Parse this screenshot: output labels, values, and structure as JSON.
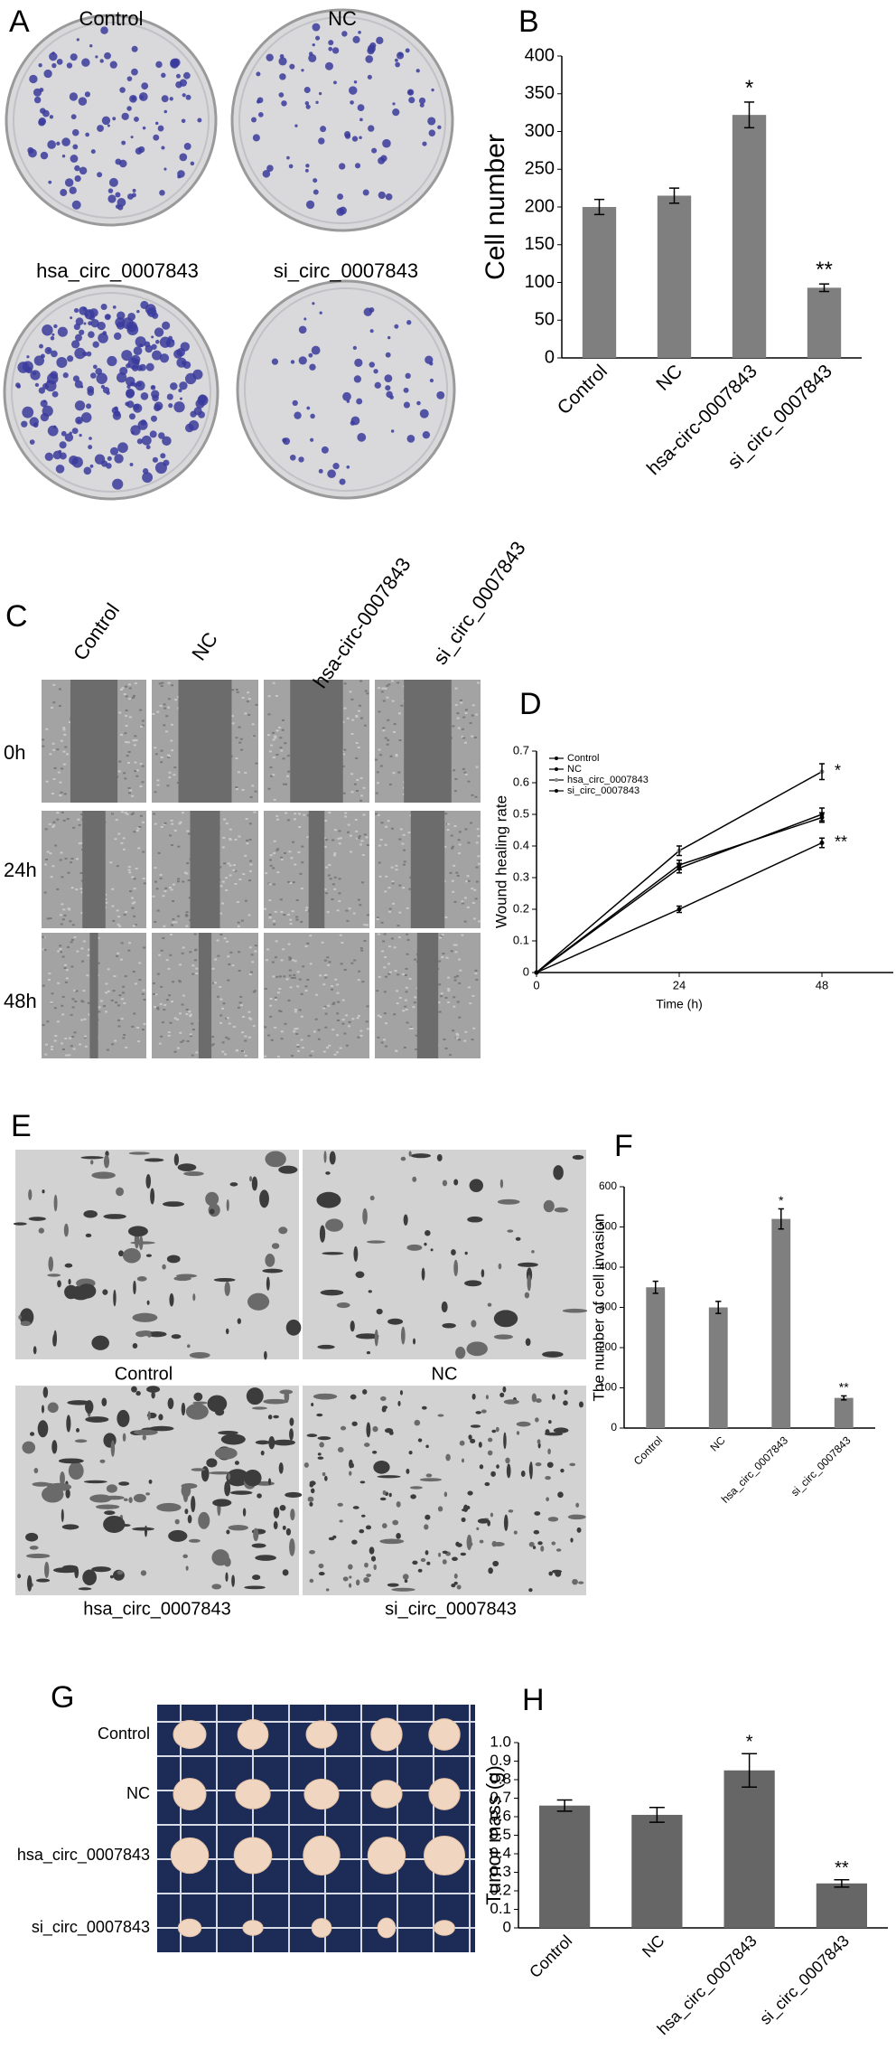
{
  "image_panels": [
    {
      "panel_label": "A",
      "labels": [
        "Control",
        "NC",
        "hsa_circ_0007843",
        "si_circ_0007843"
      ]
    },
    {
      "panel_label": "C",
      "column_labels": [
        "Control",
        "NC",
        "hsa-circ-0007843",
        "si_circ_0007843"
      ],
      "row_labels": [
        "0h",
        "24h",
        "48h"
      ]
    },
    {
      "panel_label": "E",
      "labels": [
        "Control",
        "NC",
        "hsa_circ_0007843",
        "si_circ_0007843"
      ]
    },
    {
      "panel_label": "G",
      "row_labels": [
        "Control",
        "NC",
        "hsa_circ_0007843",
        "si_circ_0007843"
      ]
    }
  ],
  "chart_data": [
    {
      "type": "bar",
      "panel_label": "B",
      "y_label": "Cell number",
      "categories": [
        "Control",
        "NC",
        "hsa-circ-0007843",
        "si_circ_0007843"
      ],
      "values": [
        200,
        215,
        322,
        93
      ],
      "errors": [
        10,
        10,
        17,
        5
      ],
      "significance": [
        null,
        null,
        "*",
        "**"
      ],
      "color": "#7f7f7f",
      "ylim": [
        0,
        400
      ],
      "yticks": [
        0,
        50,
        100,
        150,
        200,
        250,
        300,
        350,
        400
      ]
    },
    {
      "type": "line",
      "panel_label": "D",
      "y_label": "Wound healing rate",
      "x_label": "Time (h)",
      "x": [
        0,
        24,
        48
      ],
      "xlim": [
        0,
        60
      ],
      "xticks": [
        0,
        24,
        48
      ],
      "ylim": [
        0,
        0.7
      ],
      "yticks": [
        0,
        0.1,
        0.2,
        0.3,
        0.4,
        0.5,
        0.6,
        0.7
      ],
      "series": [
        {
          "name": "Control",
          "color": "#000000",
          "values": [
            0,
            0.34,
            0.49
          ],
          "errors": [
            null,
            0.015,
            0.015
          ]
        },
        {
          "name": "NC",
          "color": "#000000",
          "values": [
            0,
            0.33,
            0.5
          ],
          "errors": [
            null,
            0.015,
            0.02
          ]
        },
        {
          "name": "hsa_circ_0007843",
          "color": "#000000",
          "values": [
            0,
            0.385,
            0.635
          ],
          "errors": [
            null,
            0.015,
            0.025
          ],
          "significance": "*"
        },
        {
          "name": "si_circ_0007843",
          "color": "#000000",
          "values": [
            0,
            0.2,
            0.41
          ],
          "errors": [
            null,
            0.01,
            0.015
          ],
          "significance": "**"
        }
      ]
    },
    {
      "type": "bar",
      "panel_label": "F",
      "y_label": "The number of cell invasion",
      "categories": [
        "Control",
        "NC",
        "hsa_circ_0007843",
        "si_circ_0007843"
      ],
      "values": [
        350,
        300,
        520,
        75
      ],
      "errors": [
        15,
        15,
        25,
        5
      ],
      "significance": [
        null,
        null,
        "*",
        "**"
      ],
      "color": "#7f7f7f",
      "ylim": [
        0,
        600
      ],
      "yticks": [
        0,
        100,
        200,
        300,
        400,
        500,
        600
      ]
    },
    {
      "type": "bar",
      "panel_label": "H",
      "y_label": "Tumor mass (g)",
      "categories": [
        "Control",
        "NC",
        "hsa_circ_0007843",
        "si_circ_0007843"
      ],
      "values": [
        0.66,
        0.61,
        0.85,
        0.24
      ],
      "errors": [
        0.03,
        0.04,
        0.09,
        0.02
      ],
      "significance": [
        null,
        null,
        "*",
        "**"
      ],
      "color": "#666666",
      "ylim": [
        0,
        1.0
      ],
      "yticks": [
        0,
        0.1,
        0.2,
        0.3,
        0.4,
        0.5,
        0.6,
        0.7,
        0.8,
        0.9,
        {
          "value": 1.0,
          "label": "1.0"
        }
      ]
    }
  ]
}
